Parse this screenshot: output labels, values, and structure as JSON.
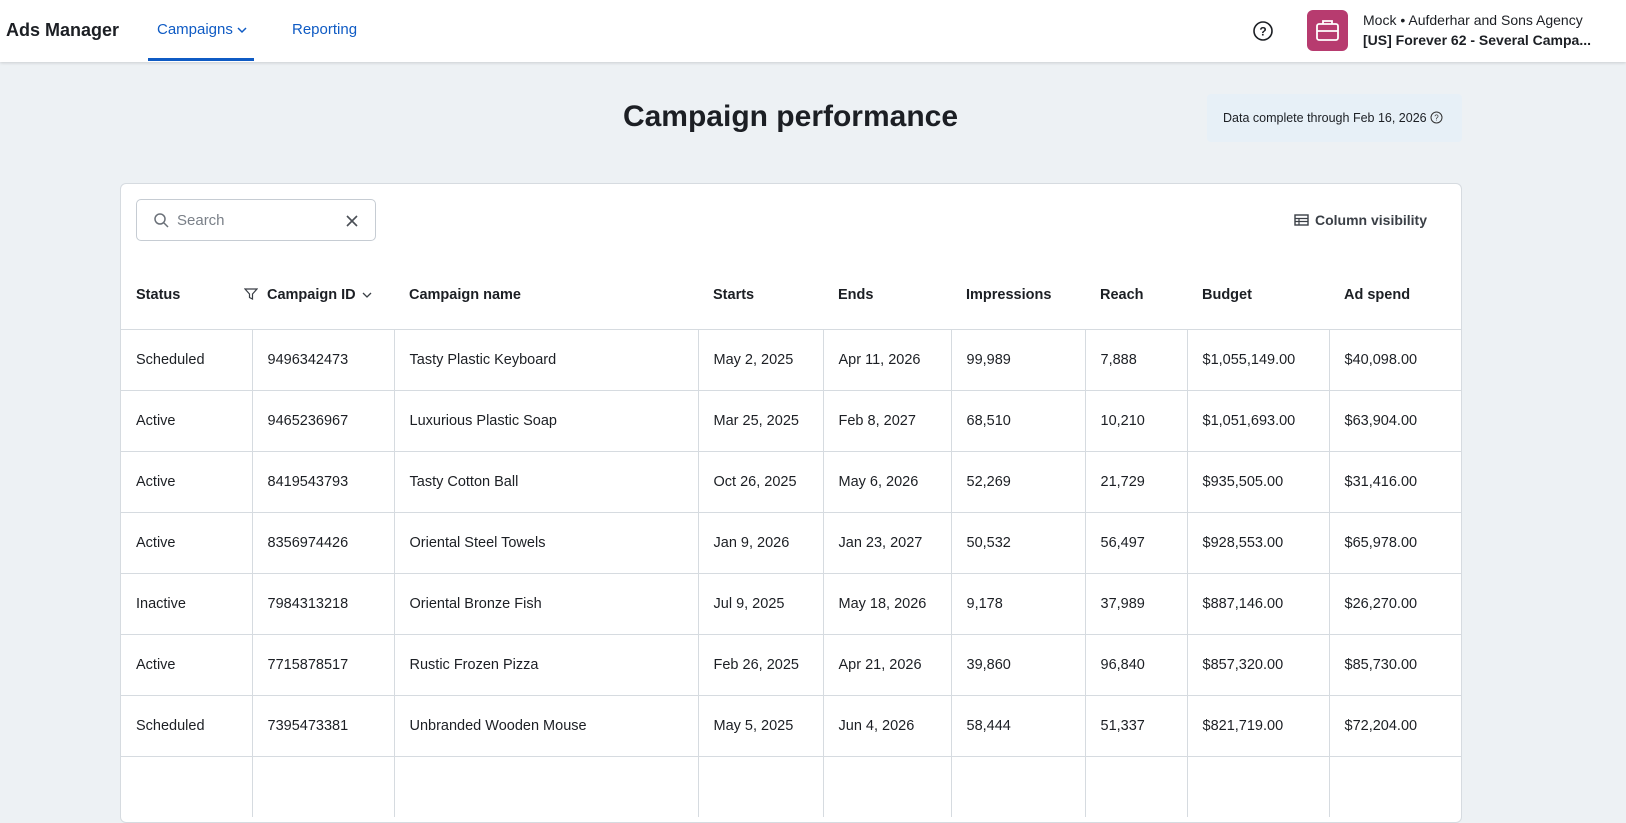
{
  "header": {
    "brand": "Ads Manager",
    "nav": [
      "Campaigns",
      "Reporting"
    ],
    "account_line1": "Mock • Aufderhar and Sons Agency",
    "account_line2": "[US] Forever 62 - Several Campa..."
  },
  "page": {
    "title": "Campaign performance",
    "data_note": "Data complete through Feb 16, 2026",
    "search_placeholder": "Search",
    "column_visibility": "Column visibility"
  },
  "table": {
    "columns": [
      "Status",
      "Campaign ID",
      "Campaign name",
      "Starts",
      "Ends",
      "Impressions",
      "Reach",
      "Budget",
      "Ad spend"
    ],
    "rows": [
      [
        "Scheduled",
        "9496342473",
        "Tasty Plastic Keyboard",
        "May 2, 2025",
        "Apr 11, 2026",
        "99,989",
        "7,888",
        "$1,055,149.00",
        "$40,098.00"
      ],
      [
        "Active",
        "9465236967",
        "Luxurious Plastic Soap",
        "Mar 25, 2025",
        "Feb 8, 2027",
        "68,510",
        "10,210",
        "$1,051,693.00",
        "$63,904.00"
      ],
      [
        "Active",
        "8419543793",
        "Tasty Cotton Ball",
        "Oct 26, 2025",
        "May 6, 2026",
        "52,269",
        "21,729",
        "$935,505.00",
        "$31,416.00"
      ],
      [
        "Active",
        "8356974426",
        "Oriental Steel Towels",
        "Jan 9, 2026",
        "Jan 23, 2027",
        "50,532",
        "56,497",
        "$928,553.00",
        "$65,978.00"
      ],
      [
        "Inactive",
        "7984313218",
        "Oriental Bronze Fish",
        "Jul 9, 2025",
        "May 18, 2026",
        "9,178",
        "37,989",
        "$887,146.00",
        "$26,270.00"
      ],
      [
        "Active",
        "7715878517",
        "Rustic Frozen Pizza",
        "Feb 26, 2025",
        "Apr 21, 2026",
        "39,860",
        "96,840",
        "$857,320.00",
        "$85,730.00"
      ],
      [
        "Scheduled",
        "7395473381",
        "Unbranded Wooden Mouse",
        "May 5, 2025",
        "Jun 4, 2026",
        "58,444",
        "51,337",
        "$821,719.00",
        "$72,204.00"
      ]
    ]
  }
}
